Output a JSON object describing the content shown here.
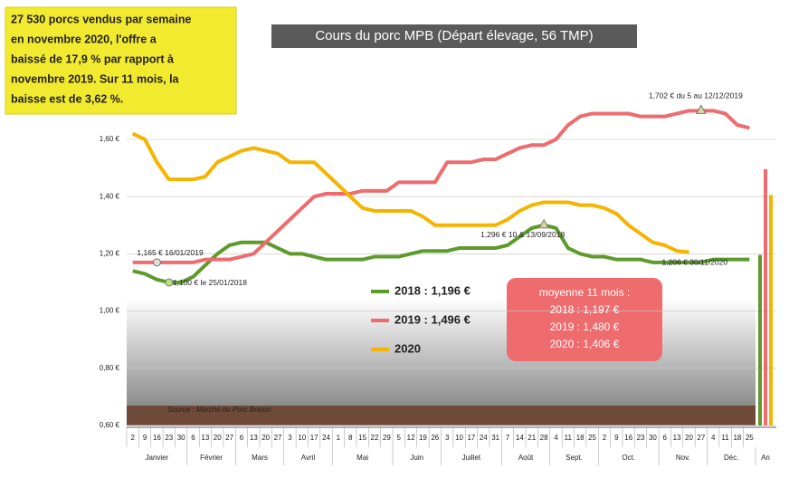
{
  "chart_data": {
    "type": "line",
    "title": "Cours du porc MPB (Départ élevage, 56 TMP)",
    "note": [
      "27 530 porcs vendus par semaine",
      "en novembre 2020, l'offre a",
      "baissé de 17,9 % par rapport à",
      "novembre 2019. Sur 11 mois, la",
      "baisse est de 3,62 %."
    ],
    "source": "Source : Marché du Porc Breton",
    "categories": [
      2,
      9,
      16,
      23,
      30,
      6,
      13,
      20,
      27,
      6,
      13,
      20,
      27,
      3,
      10,
      17,
      24,
      1,
      8,
      15,
      22,
      29,
      5,
      12,
      19,
      26,
      3,
      10,
      17,
      24,
      31,
      7,
      14,
      21,
      28,
      4,
      11,
      18,
      25,
      2,
      9,
      16,
      23,
      30,
      6,
      13,
      20,
      27,
      4,
      11,
      18,
      25
    ],
    "months": [
      "Janvier",
      "Février",
      "Mars",
      "Avril",
      "Mai",
      "Juin",
      "Juillet",
      "Août",
      "Sept.",
      "Oct.",
      "Nov.",
      "Déc."
    ],
    "annual_label": "An",
    "ylim": [
      0.6,
      1.72
    ],
    "yticks": [
      {
        "value": 0.6,
        "label": "0,60 €"
      },
      {
        "value": 0.8,
        "label": "0,80 €"
      },
      {
        "value": 1.0,
        "label": "1,00 €"
      },
      {
        "value": 1.2,
        "label": "1,20 €"
      },
      {
        "value": 1.4,
        "label": "1,40 €"
      },
      {
        "value": 1.6,
        "label": "1,60 €"
      }
    ],
    "grid": true,
    "series": [
      {
        "name": "2018 : 1,196 €",
        "color": "#5e9a2c",
        "annual": 1.196,
        "values": [
          1.14,
          1.13,
          1.11,
          1.1,
          1.1,
          1.12,
          1.16,
          1.2,
          1.23,
          1.24,
          1.24,
          1.24,
          1.22,
          1.2,
          1.2,
          1.19,
          1.18,
          1.18,
          1.18,
          1.18,
          1.19,
          1.19,
          1.19,
          1.2,
          1.21,
          1.21,
          1.21,
          1.22,
          1.22,
          1.22,
          1.22,
          1.23,
          1.26,
          1.29,
          1.3,
          1.29,
          1.22,
          1.2,
          1.19,
          1.19,
          1.18,
          1.18,
          1.18,
          1.17,
          1.17,
          1.17,
          1.17,
          1.17,
          1.18,
          1.18,
          1.18,
          1.18
        ]
      },
      {
        "name": "2019 : 1,496 €",
        "color": "#ee6b6e",
        "annual": 1.496,
        "values": [
          1.17,
          1.17,
          1.17,
          1.17,
          1.17,
          1.17,
          1.18,
          1.18,
          1.18,
          1.19,
          1.2,
          1.24,
          1.28,
          1.32,
          1.36,
          1.4,
          1.41,
          1.41,
          1.41,
          1.42,
          1.42,
          1.42,
          1.45,
          1.45,
          1.45,
          1.45,
          1.52,
          1.52,
          1.52,
          1.53,
          1.53,
          1.55,
          1.57,
          1.58,
          1.58,
          1.6,
          1.65,
          1.68,
          1.69,
          1.69,
          1.69,
          1.69,
          1.68,
          1.68,
          1.68,
          1.69,
          1.7,
          1.7,
          1.7,
          1.69,
          1.65,
          1.64
        ]
      },
      {
        "name": "2020",
        "color": "#f5b400",
        "annual": 1.406,
        "values": [
          1.62,
          1.6,
          1.52,
          1.46,
          1.46,
          1.46,
          1.47,
          1.52,
          1.54,
          1.56,
          1.57,
          1.56,
          1.55,
          1.52,
          1.52,
          1.52,
          1.48,
          1.44,
          1.4,
          1.36,
          1.35,
          1.35,
          1.35,
          1.35,
          1.33,
          1.3,
          1.3,
          1.3,
          1.3,
          1.3,
          1.3,
          1.32,
          1.35,
          1.37,
          1.38,
          1.38,
          1.38,
          1.37,
          1.37,
          1.36,
          1.34,
          1.3,
          1.27,
          1.24,
          1.23,
          1.21,
          1.206,
          null,
          null,
          null,
          null,
          null
        ]
      }
    ],
    "annotations": [
      {
        "text": "1,165 € 16/01/2019",
        "series": 1,
        "index": 2
      },
      {
        "text": "1,100 € le 25/01/2018",
        "series": 0,
        "index": 3
      },
      {
        "text": "1,296 € 10 & 13/09/2018",
        "series": 0,
        "index": 34
      },
      {
        "text": "1,702 € du 5 au 12/12/2019",
        "series": 1,
        "index": 47
      },
      {
        "text": "1,206 € 30/11/2020",
        "series": 2,
        "index": 46
      }
    ],
    "average_box": {
      "title": "moyenne 11 mois :",
      "lines": [
        "2018 : 1,197 €",
        "2019 : 1,480 €",
        "2020 : 1,406 €"
      ]
    }
  }
}
